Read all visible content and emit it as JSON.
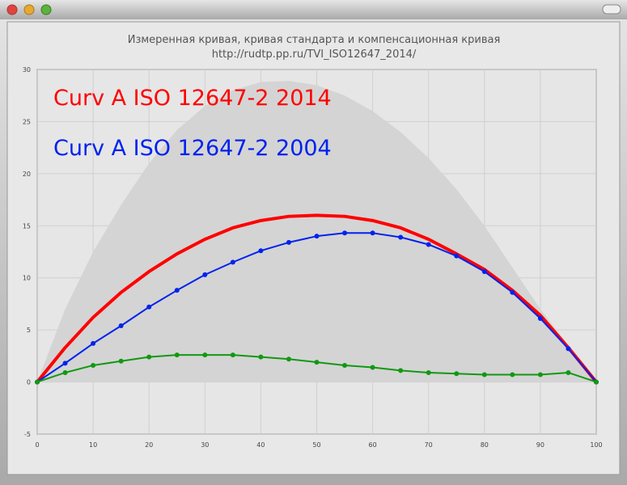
{
  "chart_data": {
    "type": "line",
    "title": "Измеренная кривая, кривая стандарта и компенсационная кривая",
    "subtitle": "http://rudtp.pp.ru/TVI_ISO12647_2014/",
    "x": [
      0,
      5,
      10,
      15,
      20,
      25,
      30,
      35,
      40,
      45,
      50,
      55,
      60,
      65,
      70,
      75,
      80,
      85,
      90,
      95,
      100
    ],
    "series": [
      {
        "color": "#d4d4d4",
        "area": true,
        "values": [
          0,
          7,
          12.5,
          17,
          21,
          24.2,
          26.5,
          28,
          28.8,
          28.9,
          28.5,
          27.5,
          26,
          24,
          21.5,
          18.5,
          15,
          11,
          7,
          3.5,
          0
        ]
      },
      {
        "name": "Curv A ISO 12647-2 2014",
        "color": "#ff0000",
        "markers": false,
        "values": [
          0,
          3.3,
          6.2,
          8.6,
          10.6,
          12.3,
          13.7,
          14.8,
          15.5,
          15.9,
          16.0,
          15.9,
          15.5,
          14.8,
          13.7,
          12.3,
          10.8,
          8.8,
          6.4,
          3.3,
          0
        ]
      },
      {
        "name": "Curv A ISO 12647-2 2004",
        "color": "#0022ee",
        "markers": true,
        "values": [
          0,
          1.8,
          3.7,
          5.4,
          7.2,
          8.8,
          10.3,
          11.5,
          12.6,
          13.4,
          14.0,
          14.3,
          14.3,
          13.9,
          13.2,
          12.1,
          10.6,
          8.6,
          6.1,
          3.2,
          0
        ]
      },
      {
        "color": "#119911",
        "markers": true,
        "values": [
          0,
          0.9,
          1.6,
          2.0,
          2.4,
          2.6,
          2.6,
          2.6,
          2.4,
          2.2,
          1.9,
          1.6,
          1.4,
          1.1,
          0.9,
          0.8,
          0.7,
          0.7,
          0.7,
          0.9,
          0
        ]
      }
    ],
    "xlim": [
      0,
      100
    ],
    "xticks": [
      0,
      10,
      20,
      30,
      40,
      50,
      60,
      70,
      80,
      90,
      100
    ],
    "ylim": [
      -5,
      30
    ],
    "yticks": [
      -5,
      0,
      5,
      10,
      15,
      20,
      25,
      30
    ],
    "grid": true
  }
}
